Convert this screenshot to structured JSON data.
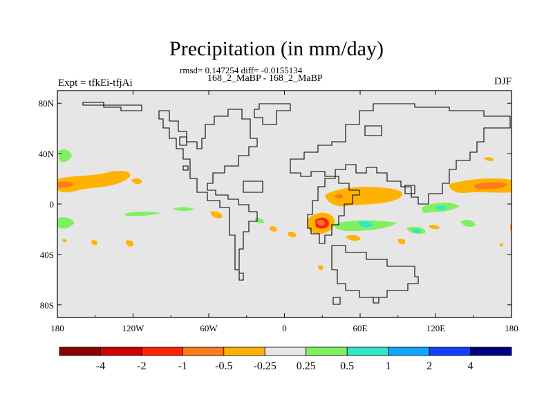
{
  "title": "Precipitation (in mm/day)",
  "stats_line": "rmsd= 0.147254 diff= -0.0155134",
  "subtitle": "168_2_MaBP - 168_2_MaBP",
  "experiment_label": "Expt = tfkEi-tfjAi",
  "season": "DJF",
  "chart_data": {
    "type": "heatmap",
    "title": "Precipitation (in mm/day)",
    "subtitle": "168_2_MaBP - 168_2_MaBP",
    "x_ticks": [
      "180",
      "120W",
      "60W",
      "0",
      "60E",
      "120E",
      "180"
    ],
    "y_ticks": [
      "80N",
      "40N",
      "0",
      "40S",
      "80S"
    ],
    "xlim": [
      -180,
      180
    ],
    "ylim": [
      -90,
      90
    ],
    "colorbar": {
      "levels": [
        "-4",
        "-2",
        "-1",
        "-0.5",
        "-0.25",
        "0.25",
        "0.5",
        "1",
        "2",
        "4"
      ],
      "colors": [
        "#8b0000",
        "#cc0000",
        "#ff2200",
        "#ff7a1a",
        "#ffb300",
        "#e6e6e6",
        "#80f060",
        "#30e8c8",
        "#10a8ff",
        "#1040ff",
        "#000080"
      ]
    },
    "background_color": "#e6e6e6",
    "anomaly_regions": [
      {
        "bin": "-0.5 to -0.25",
        "lon": [
          -180,
          -130
        ],
        "lat": [
          8,
          20
        ]
      },
      {
        "bin": "-1 to -0.5",
        "lon": [
          -180,
          -167
        ],
        "lat": [
          11,
          16
        ]
      },
      {
        "bin": "-0.5 to -0.25",
        "lon": [
          37,
          85
        ],
        "lat": [
          0,
          12
        ]
      },
      {
        "bin": "-0.5 to -0.25",
        "lon": [
          25,
          43
        ],
        "lat": [
          -30,
          -12
        ]
      },
      {
        "bin": "-2 to -1",
        "lon": [
          26,
          36
        ],
        "lat": [
          -28,
          -18
        ]
      },
      {
        "bin": "-0.5 to -0.25",
        "lon": [
          130,
          180
        ],
        "lat": [
          8,
          20
        ]
      },
      {
        "bin": "-1 to -0.5",
        "lon": [
          152,
          178
        ],
        "lat": [
          11,
          16
        ]
      },
      {
        "bin": "0.25 to 0.5",
        "lon": [
          62,
          95
        ],
        "lat": [
          -26,
          -18
        ]
      },
      {
        "bin": "0.5 to 1",
        "lon": [
          63,
          70
        ],
        "lat": [
          -22,
          -18
        ]
      },
      {
        "bin": "0.25 to 0.5",
        "lon": [
          -180,
          -165
        ],
        "lat": [
          -24,
          -15
        ]
      },
      {
        "bin": "0.25 to 0.5",
        "lon": [
          -175,
          -168
        ],
        "lat": [
          34,
          42
        ]
      },
      {
        "bin": "0.25 to 0.5",
        "lon": [
          -135,
          -100
        ],
        "lat": [
          -9,
          -7
        ]
      },
      {
        "bin": "0.25 to 0.5",
        "lon": [
          118,
          135
        ],
        "lat": [
          -14,
          -2
        ]
      }
    ]
  }
}
